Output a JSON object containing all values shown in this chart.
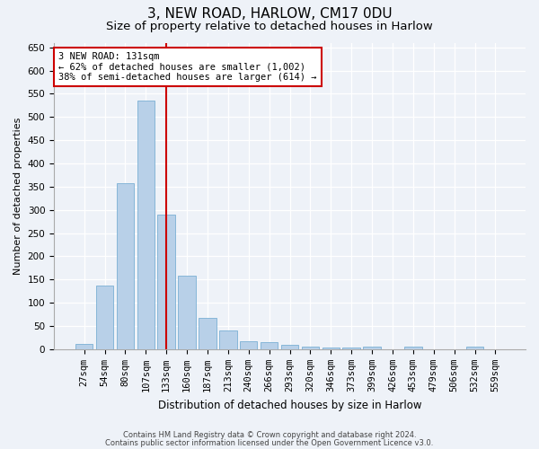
{
  "title1": "3, NEW ROAD, HARLOW, CM17 0DU",
  "title2": "Size of property relative to detached houses in Harlow",
  "xlabel": "Distribution of detached houses by size in Harlow",
  "ylabel": "Number of detached properties",
  "bar_labels": [
    "27sqm",
    "54sqm",
    "80sqm",
    "107sqm",
    "133sqm",
    "160sqm",
    "187sqm",
    "213sqm",
    "240sqm",
    "266sqm",
    "293sqm",
    "320sqm",
    "346sqm",
    "373sqm",
    "399sqm",
    "426sqm",
    "453sqm",
    "479sqm",
    "506sqm",
    "532sqm",
    "559sqm"
  ],
  "bar_values": [
    12,
    138,
    358,
    535,
    290,
    158,
    68,
    40,
    18,
    15,
    10,
    5,
    3,
    3,
    5,
    0,
    5,
    0,
    0,
    5,
    0
  ],
  "bar_color": "#b8d0e8",
  "bar_edgecolor": "#7aafd4",
  "redline_index": 4,
  "annotation_text": "3 NEW ROAD: 131sqm\n← 62% of detached houses are smaller (1,002)\n38% of semi-detached houses are larger (614) →",
  "annotation_box_color": "#ffffff",
  "annotation_box_edgecolor": "#cc0000",
  "redline_color": "#cc0000",
  "ylim": [
    0,
    660
  ],
  "yticks": [
    0,
    50,
    100,
    150,
    200,
    250,
    300,
    350,
    400,
    450,
    500,
    550,
    600,
    650
  ],
  "footnote1": "Contains HM Land Registry data © Crown copyright and database right 2024.",
  "footnote2": "Contains public sector information licensed under the Open Government Licence v3.0.",
  "bg_color": "#eef2f8",
  "plot_bg_color": "#eef2f8",
  "title1_fontsize": 11,
  "title2_fontsize": 9.5,
  "ylabel_fontsize": 8,
  "xlabel_fontsize": 8.5,
  "tick_fontsize": 7.5,
  "annot_fontsize": 7.5,
  "footnote_fontsize": 6.0
}
